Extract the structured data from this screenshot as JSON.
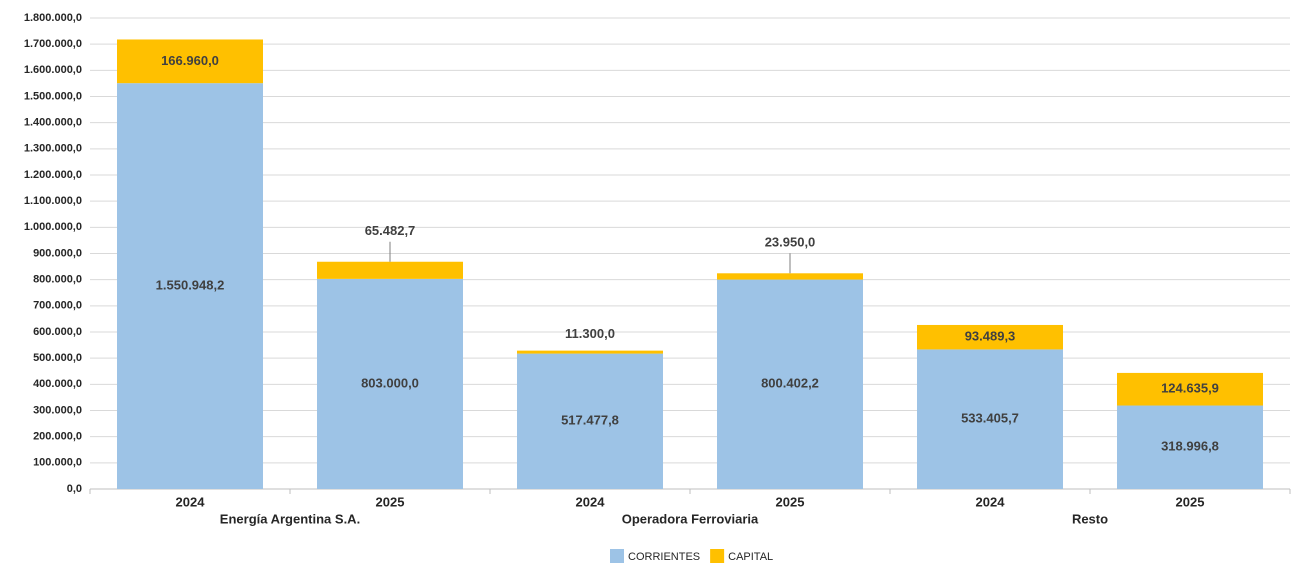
{
  "chart_data": {
    "type": "stacked-bar",
    "groups": [
      {
        "name": "Energía Argentina S.A.",
        "categories": [
          "2024",
          "2025"
        ]
      },
      {
        "name": "Operadora Ferroviaria",
        "categories": [
          "2024",
          "2025"
        ]
      },
      {
        "name": "Resto",
        "categories": [
          "2024",
          "2025"
        ]
      }
    ],
    "series": [
      {
        "name": "CORRIENTES",
        "color": "#9dc3e6",
        "values": [
          1550948.2,
          803000.0,
          517477.8,
          800402.2,
          533405.7,
          318996.8
        ],
        "value_labels": [
          "1.550.948,2",
          "803.000,0",
          "517.477,8",
          "800.402,2",
          "533.405,7",
          "318.996,8"
        ]
      },
      {
        "name": "CAPITAL",
        "color": "#ffc000",
        "values": [
          166960.0,
          65482.7,
          11300.0,
          23950.0,
          93489.3,
          124635.9
        ],
        "value_labels": [
          "166.960,0",
          "65.482,7",
          "11.300,0",
          "23.950,0",
          "93.489,3",
          "124.635,9"
        ]
      }
    ],
    "ylim": [
      0,
      1800000
    ],
    "yticks": [
      {
        "value": 0,
        "label": "0,0"
      },
      {
        "value": 100000,
        "label": "100.000,0"
      },
      {
        "value": 200000,
        "label": "200.000,0"
      },
      {
        "value": 300000,
        "label": "300.000,0"
      },
      {
        "value": 400000,
        "label": "400.000,0"
      },
      {
        "value": 500000,
        "label": "500.000,0"
      },
      {
        "value": 600000,
        "label": "600.000,0"
      },
      {
        "value": 700000,
        "label": "700.000,0"
      },
      {
        "value": 800000,
        "label": "800.000,0"
      },
      {
        "value": 900000,
        "label": "900.000,0"
      },
      {
        "value": 1000000,
        "label": "1.000.000,0"
      },
      {
        "value": 1100000,
        "label": "1.100.000,0"
      },
      {
        "value": 1200000,
        "label": "1.200.000,0"
      },
      {
        "value": 1300000,
        "label": "1.300.000,0"
      },
      {
        "value": 1400000,
        "label": "1.400.000,0"
      },
      {
        "value": 1500000,
        "label": "1.500.000,0"
      },
      {
        "value": 1600000,
        "label": "1.600.000,0"
      },
      {
        "value": 1700000,
        "label": "1.700.000,0"
      },
      {
        "value": 1800000,
        "label": "1.800.000,0"
      }
    ],
    "grid": true,
    "legend": "bottom"
  }
}
